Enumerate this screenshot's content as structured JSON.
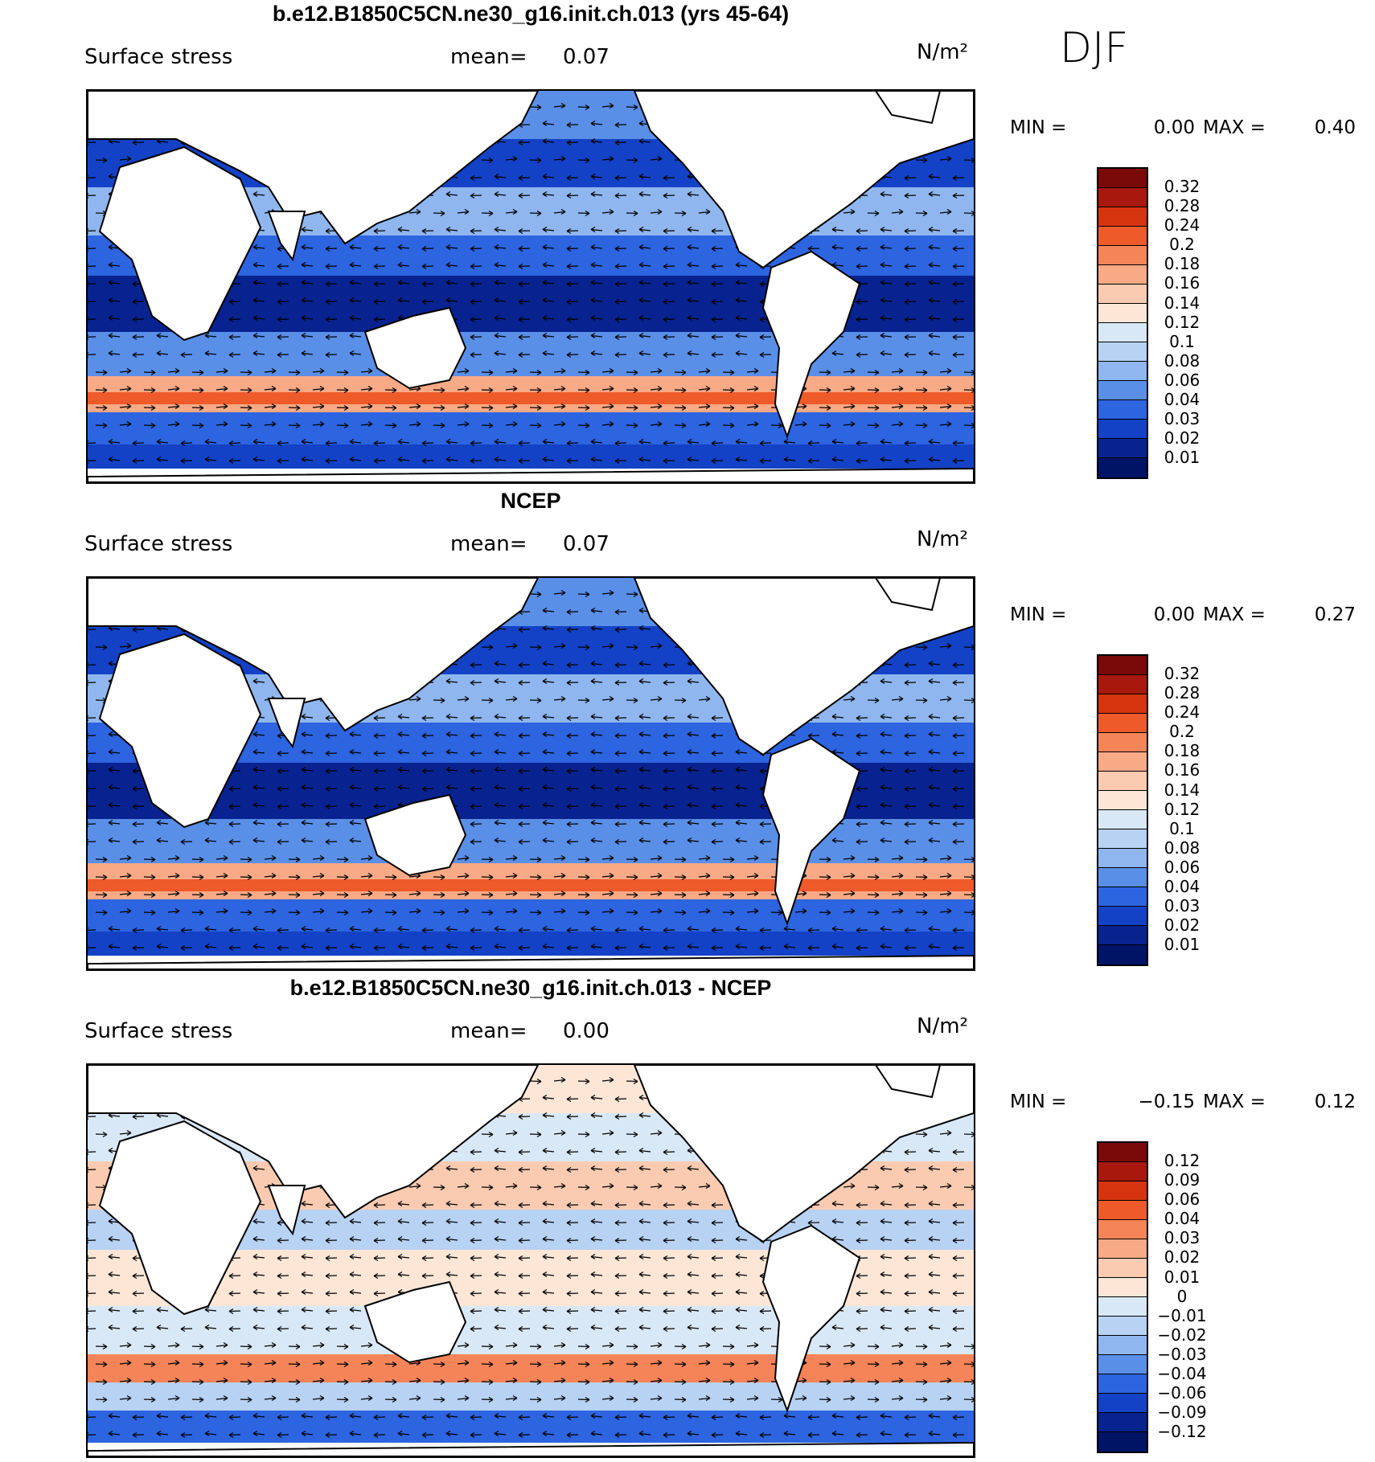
{
  "season": "DJF",
  "panels": [
    {
      "title": "b.e12.B1850C5CN.ne30_g16.init.ch.013 (yrs 45-64)",
      "field_label": "Surface stress",
      "mean_label": "mean=",
      "mean_value": "0.07",
      "units": "N/m²",
      "min_label": "MIN =",
      "min_value": "0.00",
      "max_label": "MAX =",
      "max_value": "0.40",
      "colorbar_labels": [
        "0.32",
        "0.28",
        "0.24",
        "0.2",
        "0.18",
        "0.16",
        "0.14",
        "0.12",
        "0.1",
        "0.08",
        "0.06",
        "0.04",
        "0.03",
        "0.02",
        "0.01"
      ],
      "colorbar_colors": [
        "#7a0a0a",
        "#a8180c",
        "#d6340e",
        "#ef5a2a",
        "#f58458",
        "#f8a985",
        "#fbcbb1",
        "#fde6d6",
        "#d9e8f7",
        "#b7d2f3",
        "#8fb6ef",
        "#5a8fe8",
        "#2d64e0",
        "#1342c6",
        "#08238f",
        "#001466"
      ]
    },
    {
      "title": "NCEP",
      "field_label": "Surface stress",
      "mean_label": "mean=",
      "mean_value": "0.07",
      "units": "N/m²",
      "min_label": "MIN =",
      "min_value": "0.00",
      "max_label": "MAX =",
      "max_value": "0.27",
      "colorbar_labels": [
        "0.32",
        "0.28",
        "0.24",
        "0.2",
        "0.18",
        "0.16",
        "0.14",
        "0.12",
        "0.1",
        "0.08",
        "0.06",
        "0.04",
        "0.03",
        "0.02",
        "0.01"
      ],
      "colorbar_colors": [
        "#7a0a0a",
        "#a8180c",
        "#d6340e",
        "#ef5a2a",
        "#f58458",
        "#f8a985",
        "#fbcbb1",
        "#fde6d6",
        "#d9e8f7",
        "#b7d2f3",
        "#8fb6ef",
        "#5a8fe8",
        "#2d64e0",
        "#1342c6",
        "#08238f",
        "#001466"
      ]
    },
    {
      "title": "b.e12.B1850C5CN.ne30_g16.init.ch.013 - NCEP",
      "field_label": "Surface stress",
      "mean_label": "mean=",
      "mean_value": "0.00",
      "units": "N/m²",
      "min_label": "MIN =",
      "min_value": "−0.15",
      "max_label": "MAX =",
      "max_value": "0.12",
      "colorbar_labels": [
        "0.12",
        "0.09",
        "0.06",
        "0.04",
        "0.03",
        "0.02",
        "0.01",
        "0",
        "−0.01",
        "−0.02",
        "−0.03",
        "−0.04",
        "−0.06",
        "−0.09",
        "−0.12"
      ],
      "colorbar_colors": [
        "#7a0a0a",
        "#a8180c",
        "#d6340e",
        "#ef5a2a",
        "#f58458",
        "#f8a985",
        "#fbcbb1",
        "#fde6d6",
        "#d9e8f7",
        "#b7d2f3",
        "#8fb6ef",
        "#5a8fe8",
        "#2d64e0",
        "#1342c6",
        "#08238f",
        "#001466"
      ]
    }
  ]
}
